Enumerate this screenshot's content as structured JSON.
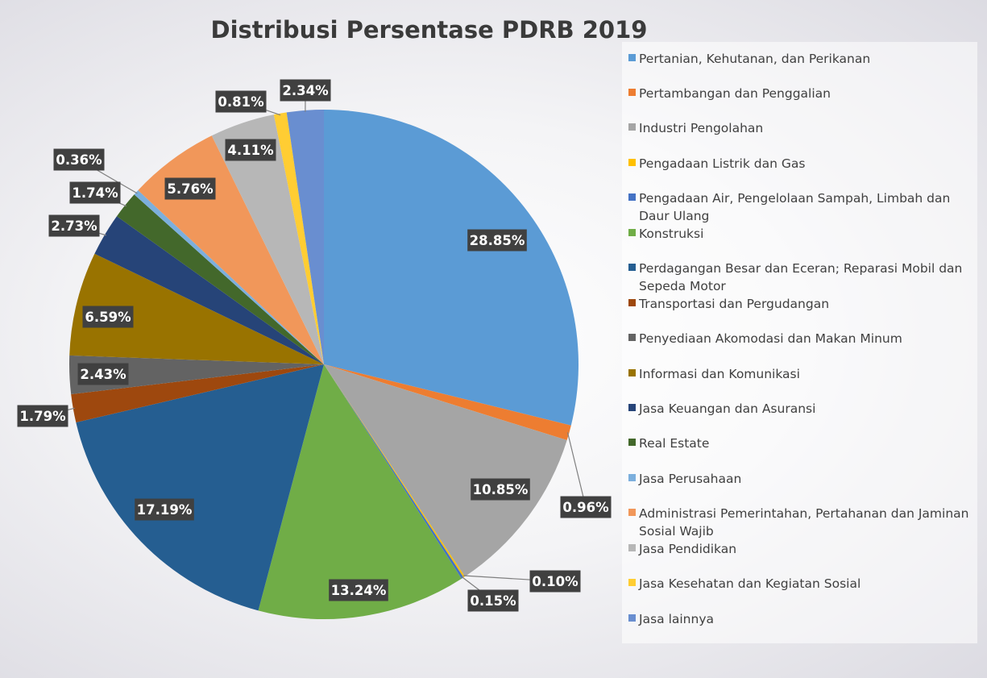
{
  "chart_data": {
    "type": "pie",
    "title": "Distribusi Persentase PDRB 2019",
    "legend_position": "right",
    "slices": [
      {
        "label": "Pertanian, Kehutanan, dan Perikanan",
        "value": 28.85,
        "display": "28.85%",
        "color": "#5B9BD5"
      },
      {
        "label": "Pertambangan dan Penggalian",
        "value": 0.96,
        "display": "0.96%",
        "color": "#ED7D31"
      },
      {
        "label": "Industri Pengolahan",
        "value": 10.85,
        "display": "10.85%",
        "color": "#A5A5A5"
      },
      {
        "label": "Pengadaan Listrik dan Gas",
        "value": 0.1,
        "display": "0.10%",
        "color": "#FFC000"
      },
      {
        "label": "Pengadaan Air, Pengelolaan Sampah, Limbah dan Daur Ulang",
        "value": 0.15,
        "display": "0.15%",
        "color": "#4472C4"
      },
      {
        "label": "Konstruksi",
        "value": 13.24,
        "display": "13.24%",
        "color": "#70AD47"
      },
      {
        "label": "Perdagangan Besar dan Eceran; Reparasi Mobil dan Sepeda Motor",
        "value": 17.19,
        "display": "17.19%",
        "color": "#255E91"
      },
      {
        "label": "Transportasi dan Pergudangan",
        "value": 1.79,
        "display": "1.79%",
        "color": "#9E480E"
      },
      {
        "label": "Penyediaan Akomodasi dan Makan Minum",
        "value": 2.43,
        "display": "2.43%",
        "color": "#636363"
      },
      {
        "label": "Informasi dan Komunikasi",
        "value": 6.59,
        "display": "6.59%",
        "color": "#997300"
      },
      {
        "label": "Jasa Keuangan dan Asuransi",
        "value": 2.73,
        "display": "2.73%",
        "color": "#264478"
      },
      {
        "label": "Real Estate",
        "value": 1.74,
        "display": "1.74%",
        "color": "#43682B"
      },
      {
        "label": "Jasa Perusahaan",
        "value": 0.36,
        "display": "0.36%",
        "color": "#7CAFDD"
      },
      {
        "label": "Administrasi Pemerintahan, Pertahanan dan Jaminan Sosial Wajib",
        "value": 5.76,
        "display": "5.76%",
        "color": "#F1975A"
      },
      {
        "label": "Jasa Pendidikan",
        "value": 4.11,
        "display": "4.11%",
        "color": "#B7B7B7"
      },
      {
        "label": "Jasa Kesehatan dan Kegiatan Sosial",
        "value": 0.81,
        "display": "0.81%",
        "color": "#FFCD33"
      },
      {
        "label": "Jasa lainnya",
        "value": 2.34,
        "display": "2.34%",
        "color": "#698ED0"
      }
    ]
  }
}
